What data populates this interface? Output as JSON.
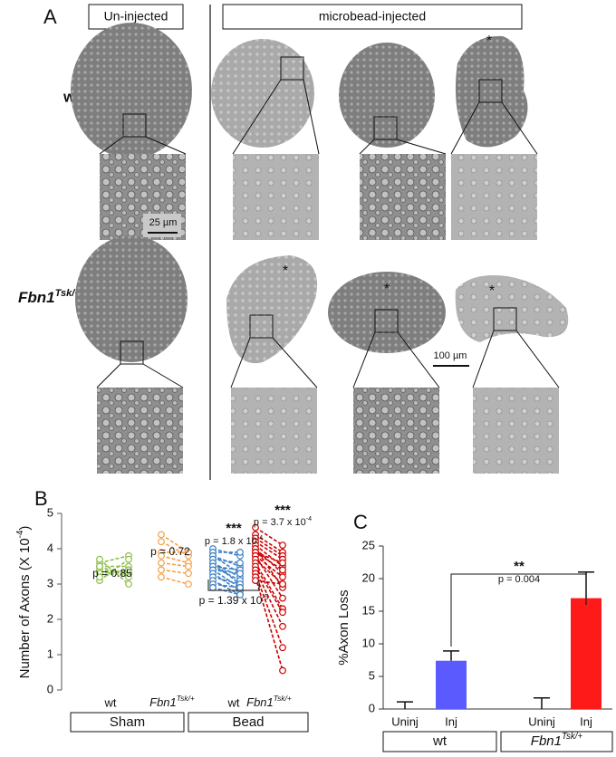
{
  "panel_a": {
    "label": "A",
    "headers": [
      "Un-injected",
      "microbead-injected"
    ],
    "rows": [
      "wt",
      [
        {
          "text": "Fbn1"
        },
        {
          "sup": "Tsk/+"
        }
      ]
    ],
    "scale_bars": [
      "25 µm",
      "100 µm"
    ],
    "asterisk": "*"
  },
  "chart_data": [
    {
      "type": "scatter",
      "panel_label": "B",
      "y_label": [
        {
          "text": "Number of Axons (X 10"
        },
        {
          "sup": "-4"
        },
        {
          "text": ")"
        }
      ],
      "ylim": [
        0,
        5
      ],
      "yticks": [
        0,
        1,
        2,
        3,
        4,
        5
      ],
      "categories": [
        "wt",
        [
          {
            "text": "Fbn1"
          },
          {
            "sup": "Tsk/+"
          }
        ],
        "wt",
        [
          {
            "text": "Fbn1"
          },
          {
            "sup": "Tsk/+"
          }
        ]
      ],
      "groups": [
        "Sham",
        "Bead"
      ],
      "series": [
        {
          "color": "#8cbf4a",
          "before": [
            3.6,
            3.5,
            3.4,
            3.3,
            3.1,
            3.7,
            3.5,
            3.2
          ],
          "after": [
            3.8,
            3.5,
            3.3,
            3.4,
            3.7,
            3.0,
            3.2,
            3.4
          ]
        },
        {
          "color": "#f5a04a",
          "before": [
            4.4,
            4.2,
            3.9,
            3.8,
            3.4,
            3.2,
            3.6
          ],
          "after": [
            3.9,
            3.8,
            3.9,
            3.6,
            3.3,
            3.0,
            3.5
          ]
        },
        {
          "color": "#3d7fc4",
          "before": [
            4.0,
            3.9,
            3.8,
            3.8,
            3.7,
            3.6,
            3.6,
            3.5,
            3.5,
            3.4,
            3.4,
            3.3,
            3.2,
            3.1,
            3.0,
            2.9
          ],
          "after": [
            3.8,
            3.9,
            3.5,
            3.3,
            3.6,
            3.2,
            3.0,
            3.4,
            3.1,
            2.9,
            3.3,
            2.8,
            3.0,
            2.7,
            2.9,
            2.7
          ]
        },
        {
          "color": "#cc0000",
          "before": [
            4.6,
            4.4,
            4.3,
            4.2,
            4.1,
            4.0,
            4.0,
            3.9,
            3.9,
            3.8,
            3.8,
            3.7,
            3.6,
            3.5,
            3.4,
            3.3,
            3.2,
            3.1
          ],
          "after": [
            4.1,
            3.9,
            3.8,
            3.7,
            3.5,
            3.3,
            2.9,
            3.6,
            3.4,
            3.2,
            2.6,
            3.0,
            2.3,
            2.2,
            1.8,
            1.2,
            0.55,
            3.0
          ]
        }
      ],
      "annotations": [
        "p = 0.85",
        "p = 0.72",
        "***",
        [
          {
            "text": "p = 1.8 x 10"
          },
          {
            "sup": "-4"
          }
        ],
        "***",
        [
          {
            "text": "p = 3.7 x 10"
          },
          {
            "sup": "-4"
          }
        ],
        [
          {
            "text": "p = 1.39 x 10"
          },
          {
            "sup": "-5"
          }
        ]
      ]
    },
    {
      "type": "bar",
      "panel_label": "C",
      "y_label": "%Axon Loss",
      "ylim": [
        0,
        25
      ],
      "yticks": [
        0,
        5,
        10,
        15,
        20,
        25
      ],
      "categories": [
        "Uninj",
        "Inj",
        "Uninj",
        "Inj"
      ],
      "values": [
        0,
        7.4,
        0,
        17
      ],
      "errors": [
        1.1,
        1.5,
        1.7,
        4.0
      ],
      "colors": [
        "#5a5aff",
        "#5a5aff",
        "#ff1a1a",
        "#ff1a1a"
      ],
      "groups": [
        "wt",
        [
          {
            "text": "Fbn1"
          },
          {
            "sup": "Tsk/+"
          }
        ]
      ],
      "annotations": [
        "**",
        "p = 0.004"
      ]
    }
  ]
}
